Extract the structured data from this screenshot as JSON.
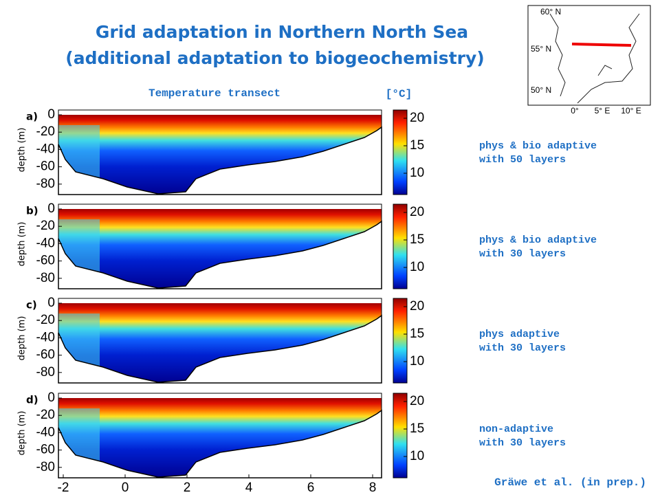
{
  "title": [
    "Grid adaptation in Northern North Sea",
    "(additional adaptation to biogeochemistry)"
  ],
  "subtitle": "Temperature transect",
  "colorbar_unit": "[°C]",
  "y_axis_label": "depth (m)",
  "yticks": [
    0,
    -20,
    -40,
    -60,
    -80
  ],
  "colorbar_ticks": [
    20,
    15,
    10
  ],
  "xticks": [
    -2,
    0,
    2,
    4,
    6,
    8
  ],
  "panels": [
    {
      "label": "a)",
      "caption": [
        "phys & bio adaptive",
        "with 50 layers"
      ]
    },
    {
      "label": "b)",
      "caption": [
        "phys & bio adaptive",
        "with 30 layers"
      ]
    },
    {
      "label": "c)",
      "caption": [
        "phys adaptive",
        "with 30 layers"
      ]
    },
    {
      "label": "d)",
      "caption": [
        "non-adaptive",
        "with 30 layers"
      ]
    }
  ],
  "map": {
    "lat_labels": [
      "60° N",
      "55° N",
      "50° N"
    ],
    "lon_labels": [
      "0°",
      "5° E",
      "10° E"
    ]
  },
  "credit": "Gräwe et al. (in prep.)"
}
